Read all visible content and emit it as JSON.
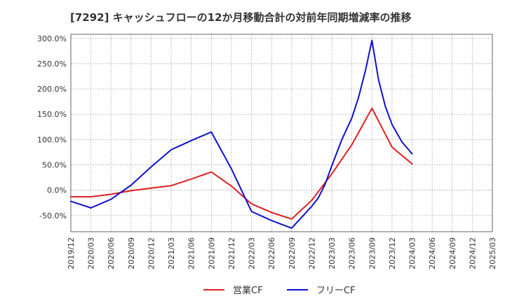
{
  "chart_data": {
    "type": "line",
    "title": "[7292]  キャッシュフローの12か月移動合計の対前年同期増減率の推移",
    "xlabel": "",
    "ylabel": "",
    "x": [
      "2019/12",
      "2020/03",
      "2020/06",
      "2020/09",
      "2020/12",
      "2021/03",
      "2021/06",
      "2021/09",
      "2021/12",
      "2022/03",
      "2022/06",
      "2022/09",
      "2022/12",
      "2023/03",
      "2023/06",
      "2023/09",
      "2023/12",
      "2024/03",
      "2024/06",
      "2024/09",
      "2024/12",
      "2025/03"
    ],
    "ylim": [
      -82,
      308
    ],
    "yticks": [
      {
        "value": 300,
        "label": "300.0%"
      },
      {
        "value": 250,
        "label": "250.0%"
      },
      {
        "value": 200,
        "label": "200.0%"
      },
      {
        "value": 150,
        "label": "150.0%"
      },
      {
        "value": 100,
        "label": "100.0%"
      },
      {
        "value": 50,
        "label": "50.0%"
      },
      {
        "value": 0,
        "label": "0.0%"
      },
      {
        "value": -50,
        "label": "-50.0%"
      }
    ],
    "grid": true,
    "legend_position": "bottom",
    "series": [
      {
        "name": "営業CF",
        "color": "#e02020",
        "points": [
          [
            0,
            -13
          ],
          [
            1,
            -13
          ],
          [
            2,
            -8
          ],
          [
            3,
            -1
          ],
          [
            4,
            4
          ],
          [
            5,
            9
          ],
          [
            6,
            22
          ],
          [
            7,
            36
          ],
          [
            8,
            8
          ],
          [
            9,
            -27
          ],
          [
            10,
            -44
          ],
          [
            11,
            -57
          ],
          [
            12,
            -20
          ],
          [
            13,
            32
          ],
          [
            14,
            90
          ],
          [
            15,
            162
          ],
          [
            16,
            85
          ],
          [
            17,
            52
          ]
        ]
      },
      {
        "name": "フリーCF",
        "color": "#1010d0",
        "points": [
          [
            0,
            -22
          ],
          [
            1,
            -35
          ],
          [
            2,
            -18
          ],
          [
            3,
            10
          ],
          [
            4,
            46
          ],
          [
            5,
            80
          ],
          [
            6,
            98
          ],
          [
            7,
            115
          ],
          [
            8,
            42
          ],
          [
            9,
            -42
          ],
          [
            10,
            -60
          ],
          [
            11,
            -75
          ],
          [
            12,
            -32
          ],
          [
            12.33,
            -15
          ],
          [
            12.67,
            12
          ],
          [
            13,
            48
          ],
          [
            13.5,
            100
          ],
          [
            14,
            143
          ],
          [
            14.33,
            183
          ],
          [
            14.67,
            235
          ],
          [
            15,
            296
          ],
          [
            15.33,
            218
          ],
          [
            15.67,
            165
          ],
          [
            16,
            130
          ],
          [
            16.5,
            95
          ],
          [
            17,
            72
          ]
        ]
      }
    ]
  }
}
